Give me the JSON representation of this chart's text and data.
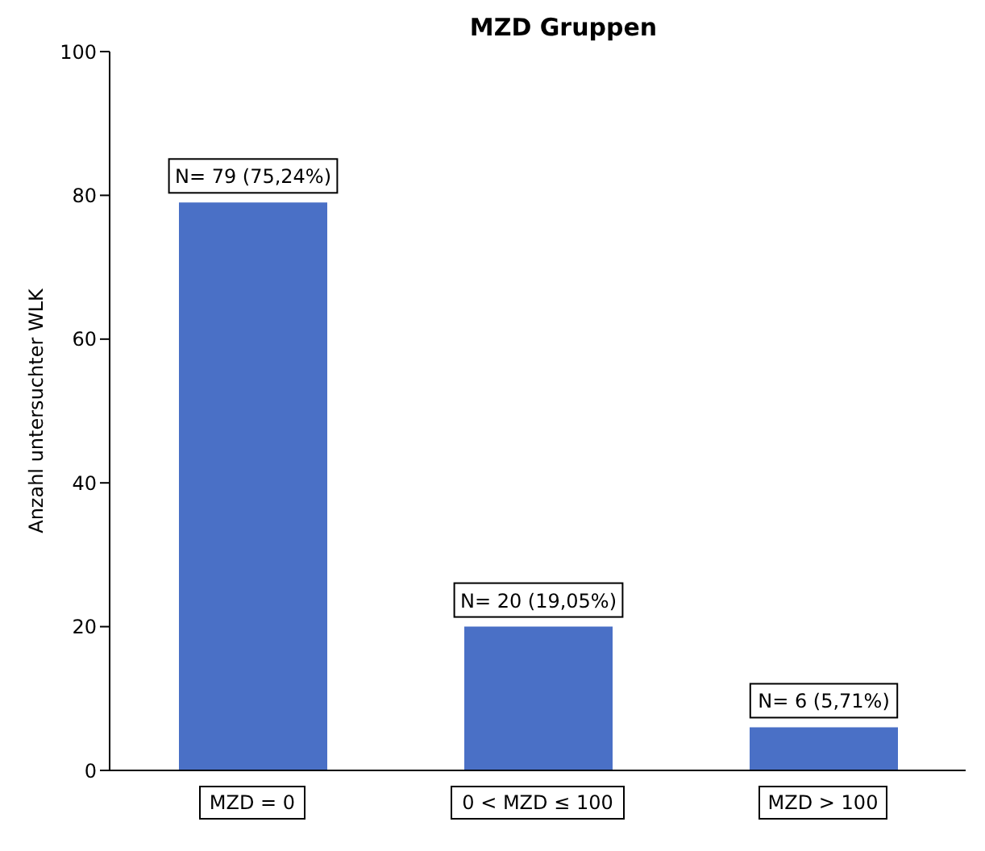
{
  "chart_data": {
    "type": "bar",
    "title": "MZD Gruppen",
    "ylabel": "Anzahl untersuchter WLK",
    "categories": [
      "MZD = 0",
      "0 < MZD ≤ 100",
      "MZD > 100"
    ],
    "values": [
      79,
      20,
      6
    ],
    "color": "#4a70c6",
    "value_labels": [
      "N= 79 (75,24%)",
      "N= 20 (19,05%)",
      "N= 6 (5,71%)"
    ],
    "ylim": [
      0,
      100
    ],
    "yticks": [
      0,
      20,
      40,
      60,
      80,
      100
    ],
    "grid": false,
    "legend": false
  }
}
